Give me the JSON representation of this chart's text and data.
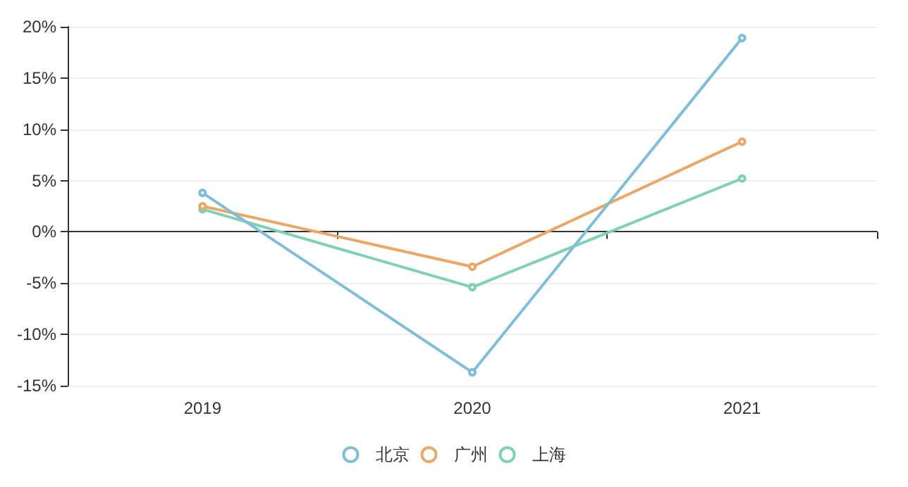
{
  "chart_data": {
    "type": "line",
    "categories": [
      "2019",
      "2020",
      "2021"
    ],
    "series": [
      {
        "name": "北京",
        "color": "#80bdd8",
        "values": [
          3.8,
          -13.7,
          18.9
        ]
      },
      {
        "name": "广州",
        "color": "#e8a868",
        "values": [
          2.5,
          -3.4,
          8.8
        ]
      },
      {
        "name": "上海",
        "color": "#7fd1b4",
        "values": [
          2.2,
          -5.4,
          5.2
        ]
      }
    ],
    "ylim": [
      -15,
      20
    ],
    "yticks": [
      {
        "value": -15,
        "label": "-15%"
      },
      {
        "value": -10,
        "label": "-10%"
      },
      {
        "value": -5,
        "label": "-5%"
      },
      {
        "value": 0,
        "label": "0%"
      },
      {
        "value": 5,
        "label": "5%"
      },
      {
        "value": 10,
        "label": "10%"
      },
      {
        "value": 15,
        "label": "15%"
      },
      {
        "value": 20,
        "label": "20%"
      }
    ],
    "grid": "y",
    "legend": "bottom",
    "marker": "circle",
    "line_style": "solid"
  }
}
